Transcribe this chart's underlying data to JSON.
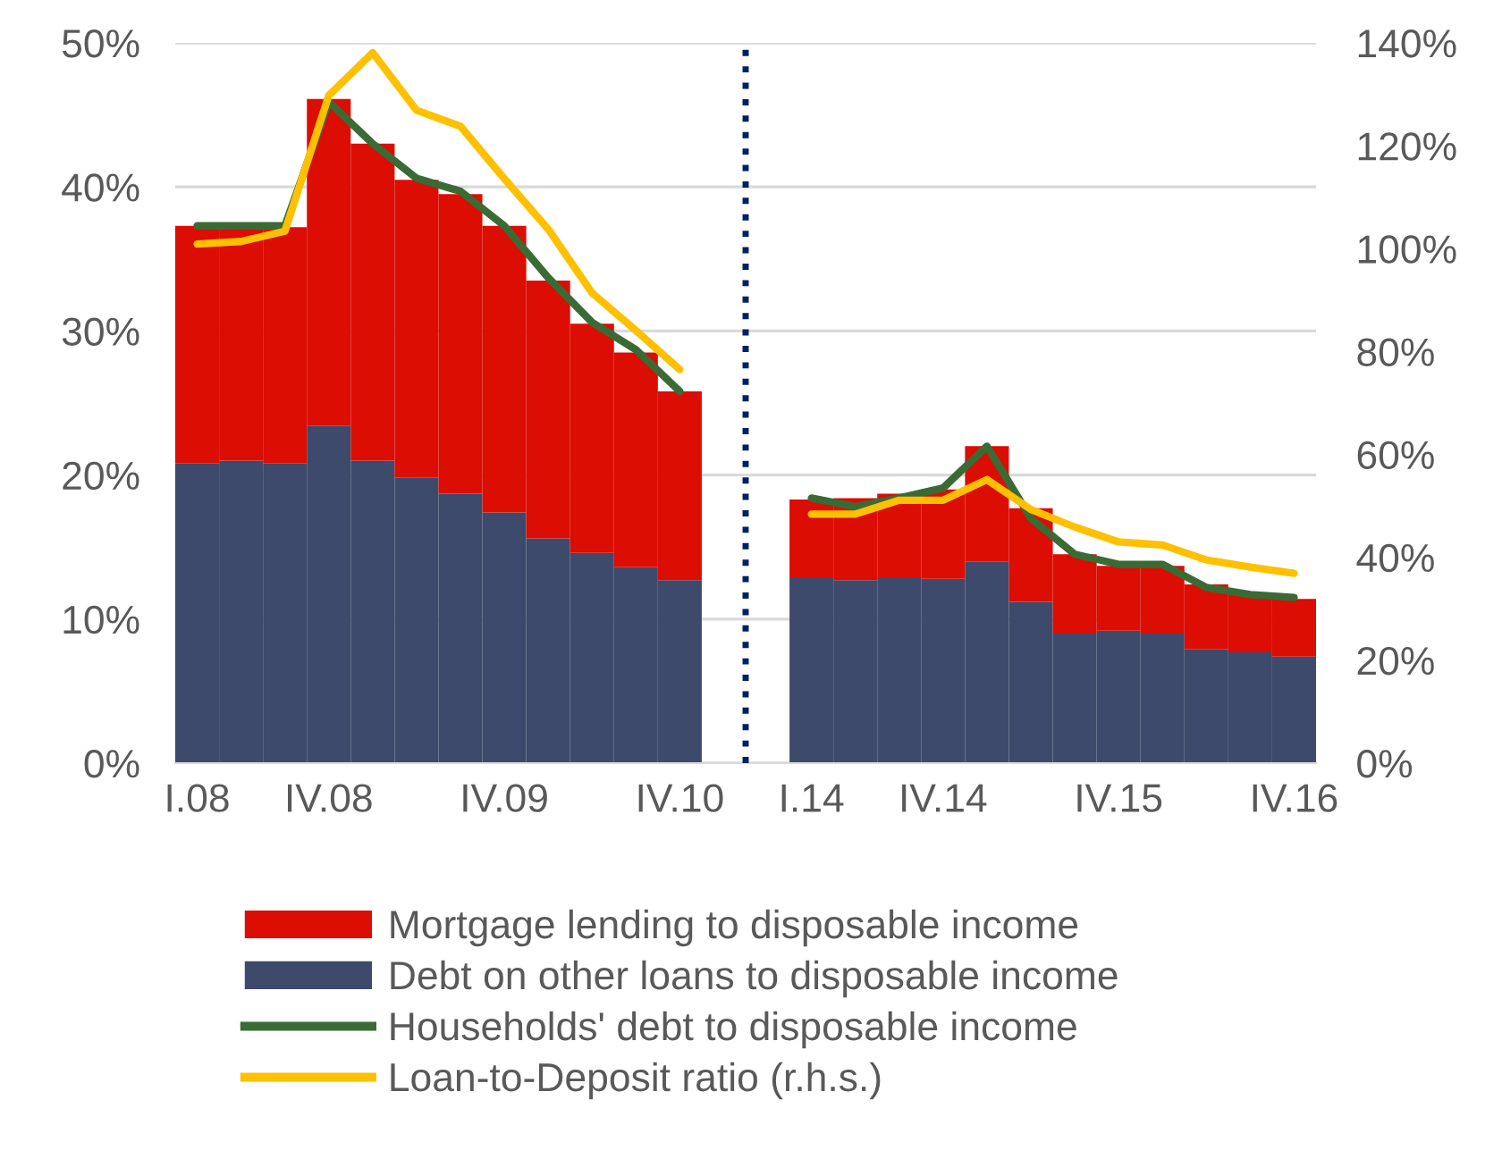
{
  "chart_data": {
    "type": "bar",
    "stacked": true,
    "categories": [
      "I.08",
      null,
      null,
      "IV.08",
      null,
      null,
      null,
      "IV.09",
      null,
      null,
      null,
      "IV.10",
      null,
      null,
      "I.14",
      null,
      null,
      "IV.14",
      null,
      null,
      null,
      "IV.15",
      null,
      null,
      null,
      "IV.16"
    ],
    "series": [
      {
        "name": "Debt on other loans to disposable income",
        "color": "#3d4a6b",
        "values": [
          20.8,
          21.0,
          20.8,
          23.4,
          21.0,
          19.8,
          18.7,
          17.4,
          15.6,
          14.6,
          13.6,
          12.7,
          null,
          null,
          12.9,
          12.7,
          12.9,
          12.8,
          14.0,
          11.2,
          9.0,
          9.2,
          9.0,
          7.9,
          7.7,
          7.4
        ]
      },
      {
        "name": "Mortgage lending to disposable income",
        "color": "#dc0d02",
        "values": [
          16.5,
          16.3,
          16.4,
          22.7,
          22.0,
          20.7,
          20.8,
          19.9,
          17.9,
          15.9,
          14.9,
          13.1,
          null,
          null,
          5.4,
          5.7,
          5.8,
          6.2,
          8.0,
          6.5,
          5.5,
          4.5,
          4.7,
          4.5,
          4.1,
          4.0
        ]
      },
      {
        "name": "Households' debt to disposable income",
        "type": "line",
        "color": "#3a6b35",
        "values": [
          37.3,
          37.3,
          37.3,
          45.9,
          43.0,
          40.6,
          39.7,
          37.3,
          33.7,
          30.6,
          28.7,
          25.8,
          null,
          null,
          18.4,
          17.8,
          18.4,
          19.1,
          22.0,
          17.0,
          14.5,
          13.8,
          13.8,
          12.2,
          11.7,
          11.5
        ]
      },
      {
        "name": "Loan-to-Deposit ratio (r.h.s.)",
        "type": "line",
        "axis": "y2",
        "color": "#ffc000",
        "values": [
          100.9,
          101.4,
          103.4,
          129.8,
          138.1,
          126.9,
          123.8,
          113.6,
          103.8,
          91.4,
          84.1,
          76.5,
          null,
          null,
          48.4,
          48.4,
          51.1,
          51.1,
          55.1,
          49.3,
          45.9,
          43.0,
          42.4,
          39.5,
          38.1,
          36.9
        ]
      }
    ],
    "ylim": [
      0,
      50
    ],
    "yticks": [
      {
        "value": 0,
        "label": "0%"
      },
      {
        "value": 10,
        "label": "10%"
      },
      {
        "value": 20,
        "label": "20%"
      },
      {
        "value": 30,
        "label": "30%"
      },
      {
        "value": 40,
        "label": "40%"
      },
      {
        "value": 50,
        "label": "50%"
      }
    ],
    "y2lim": [
      0,
      140
    ],
    "y2ticks": [
      {
        "value": 0,
        "label": "0%"
      },
      {
        "value": 20,
        "label": "20%"
      },
      {
        "value": 40,
        "label": "40%"
      },
      {
        "value": 60,
        "label": "60%"
      },
      {
        "value": 80,
        "label": "80%"
      },
      {
        "value": 100,
        "label": "100%"
      },
      {
        "value": 120,
        "label": "120%"
      },
      {
        "value": 140,
        "label": "140%"
      }
    ],
    "ref_lines": [
      {
        "axis": "x",
        "color": "#002060",
        "line_style": "dotted"
      }
    ],
    "grid": "y",
    "legend": "bottom",
    "marker": "none",
    "line_style": "solid"
  }
}
